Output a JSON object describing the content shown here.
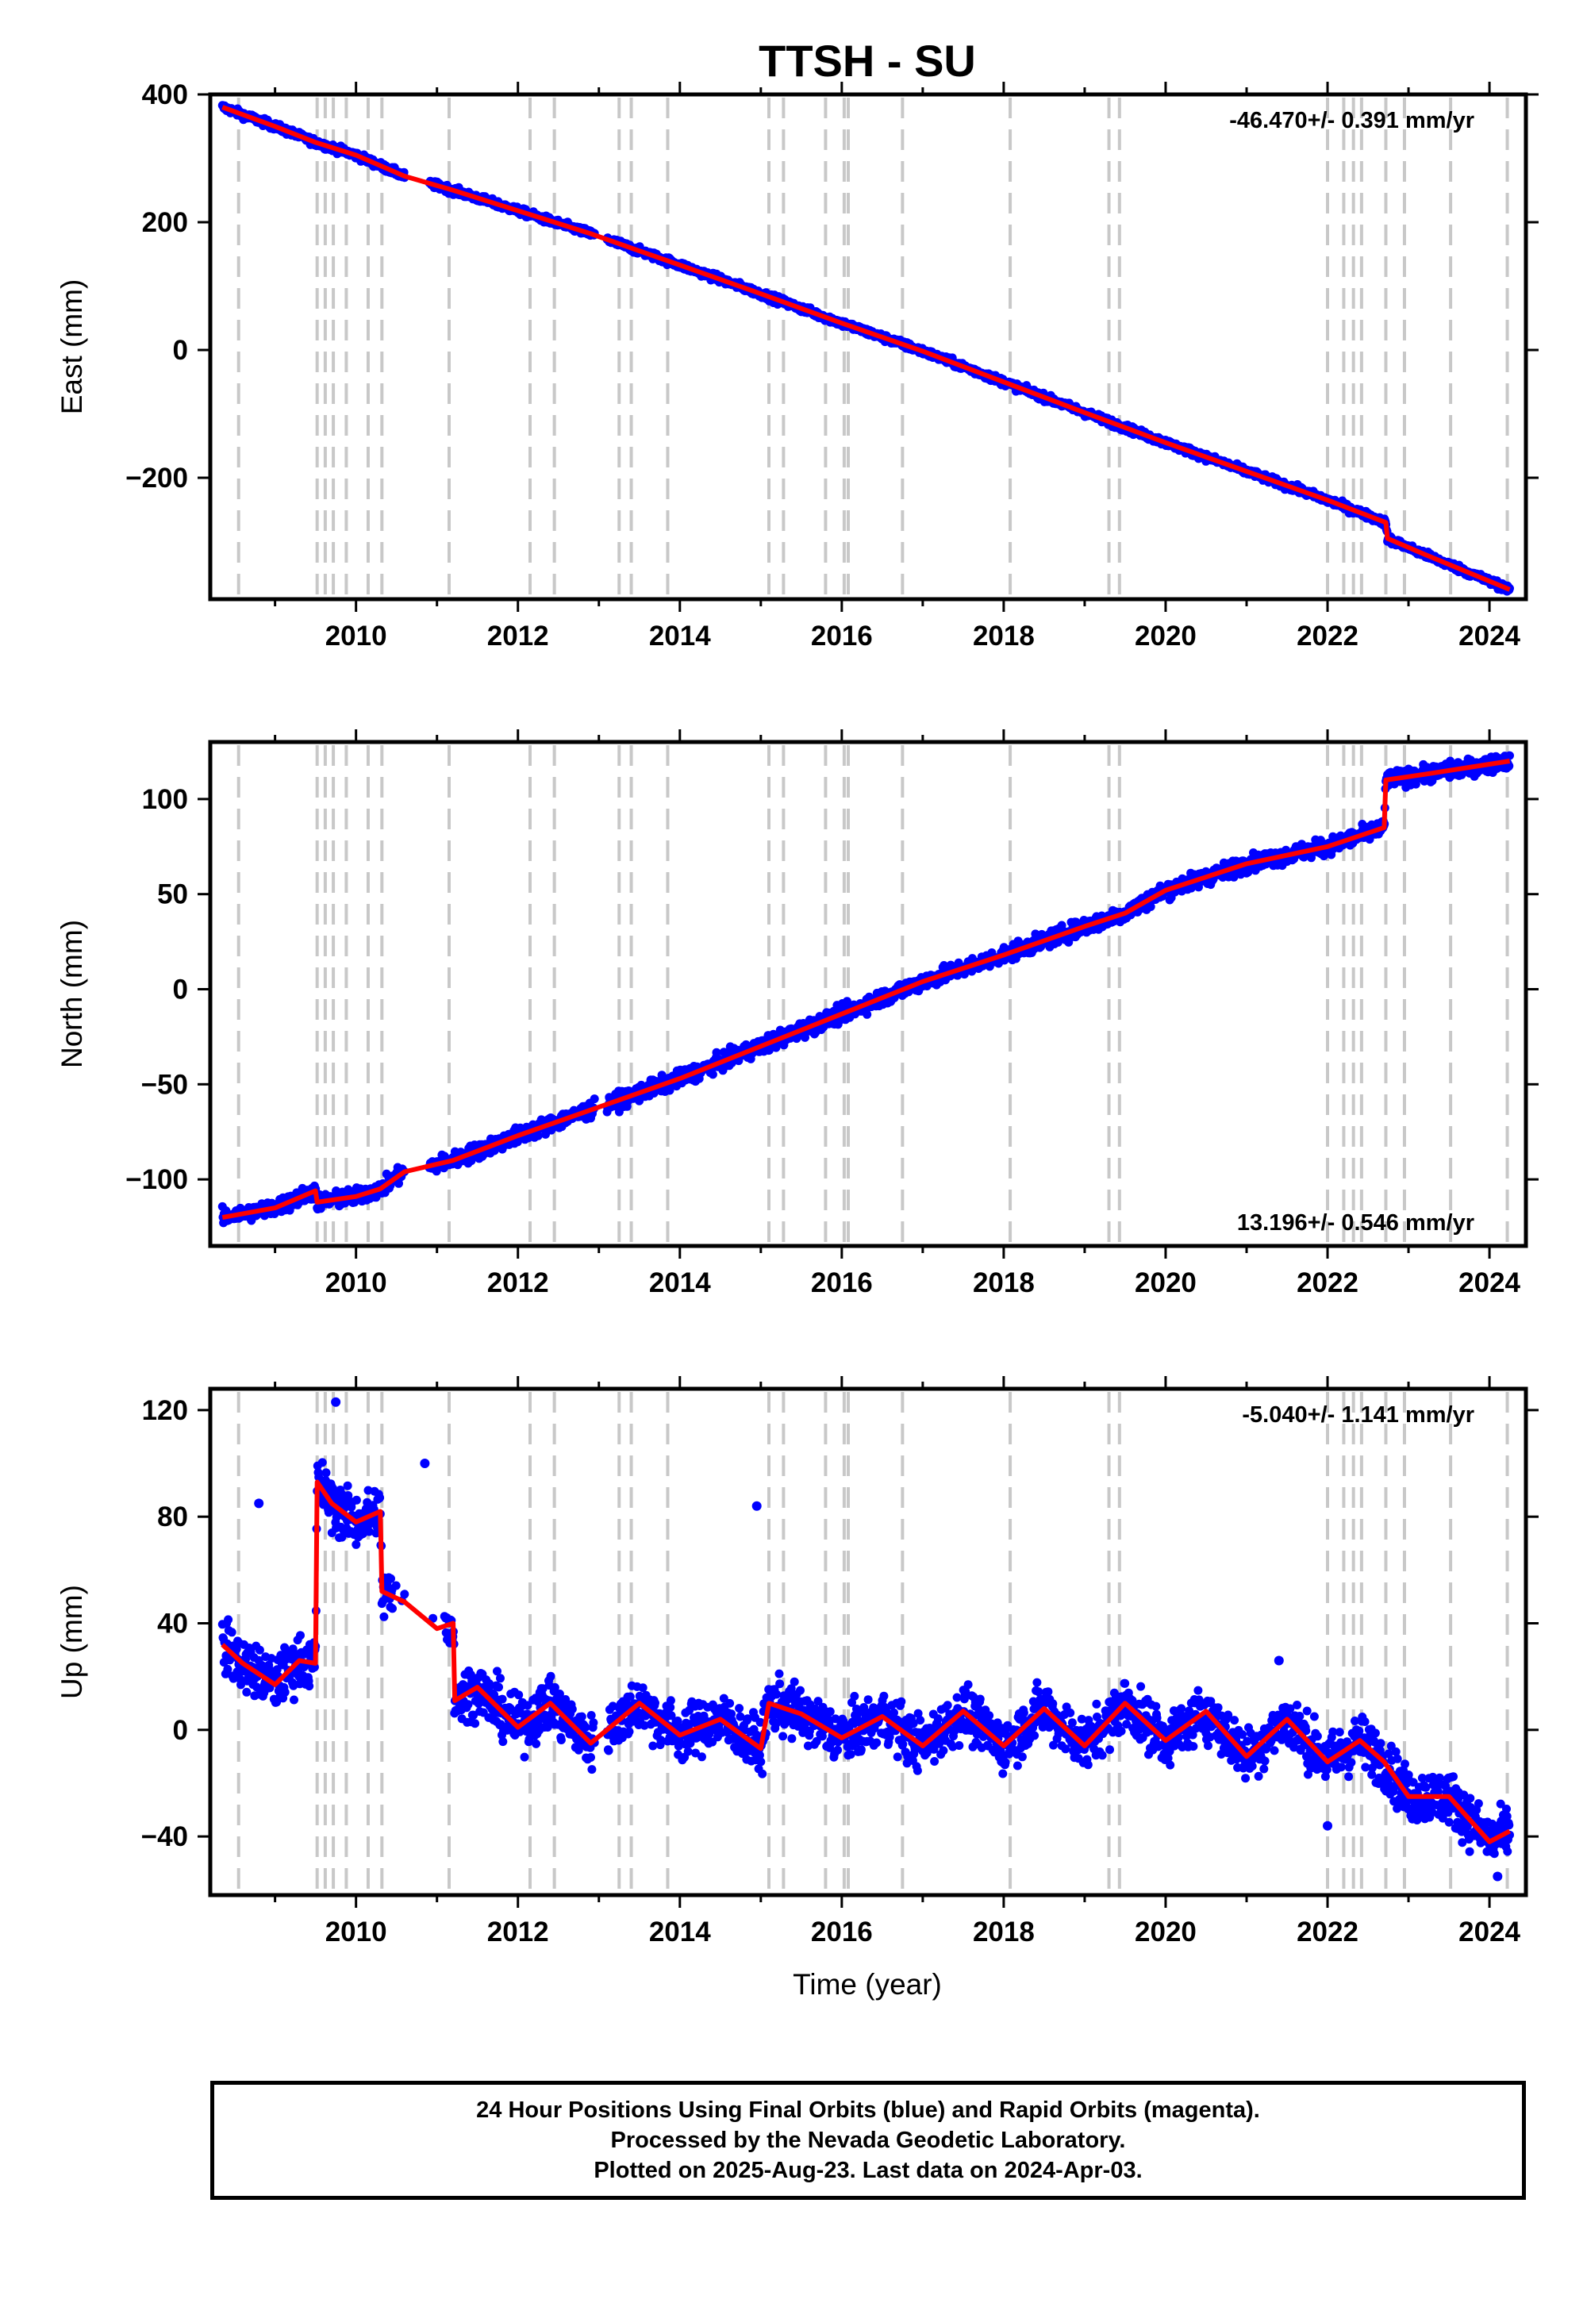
{
  "title": "TTSH - SU",
  "xlabel": "Time (year)",
  "footer": {
    "line1": "24 Hour Positions Using Final Orbits (blue) and Rapid Orbits (magenta).",
    "line2": "Processed by the Nevada Geodetic Laboratory.",
    "line3": "Plotted on 2025-Aug-23. Last data on 2024-Apr-03."
  },
  "colors": {
    "data": "#0000ff",
    "model": "#ff0000",
    "breaks": "#c8c8c8",
    "axes": "#000000"
  },
  "chart_data": [
    {
      "type": "scatter",
      "component": "east",
      "ylabel": "East (mm)",
      "rate": "-46.470+/- 0.391 mm/yr",
      "rate_position": "top-right",
      "xlim": [
        2008.2,
        2024.45
      ],
      "ylim": [
        -390,
        400
      ],
      "xticks": [
        2010,
        2012,
        2014,
        2016,
        2018,
        2020,
        2022,
        2024
      ],
      "yticks": [
        -200,
        0,
        200,
        400
      ],
      "model_x": [
        2008.35,
        2009.0,
        2009.5,
        2010.0,
        2010.6,
        2011.2,
        2012.0,
        2012.9,
        2013.5,
        2014.0,
        2015.0,
        2016.0,
        2017.0,
        2018.0,
        2019.0,
        2020.0,
        2021.0,
        2022.0,
        2022.72,
        2022.74,
        2023.2,
        2024.25
      ],
      "model_y": [
        380,
        350,
        325,
        305,
        272,
        250,
        218,
        182,
        155,
        133,
        88,
        42,
        -2,
        -50,
        -98,
        -145,
        -190,
        -235,
        -270,
        -295,
        -320,
        -375
      ]
    },
    {
      "type": "scatter",
      "component": "north",
      "ylabel": "North (mm)",
      "rate": "13.196+/- 0.546 mm/yr",
      "rate_position": "bottom-right",
      "xlim": [
        2008.2,
        2024.45
      ],
      "ylim": [
        -135,
        130
      ],
      "xticks": [
        2010,
        2012,
        2014,
        2016,
        2018,
        2020,
        2022,
        2024
      ],
      "yticks": [
        -100,
        -50,
        0,
        50,
        100
      ],
      "model_x": [
        2008.35,
        2009.0,
        2009.5,
        2009.52,
        2010.0,
        2010.3,
        2010.6,
        2011.2,
        2012.0,
        2013.0,
        2014.0,
        2015.0,
        2016.0,
        2017.0,
        2018.0,
        2019.0,
        2019.5,
        2020.0,
        2021.0,
        2022.0,
        2022.7,
        2022.72,
        2023.2,
        2024.25
      ],
      "model_y": [
        -120,
        -115,
        -106,
        -112,
        -109,
        -105,
        -96,
        -90,
        -77,
        -62,
        -47,
        -30,
        -13,
        4,
        18,
        33,
        40,
        52,
        66,
        75,
        85,
        110,
        113,
        120
      ]
    },
    {
      "type": "scatter",
      "component": "up",
      "ylabel": "Up (mm)",
      "rate": "-5.040+/- 1.141 mm/yr",
      "rate_position": "top-right",
      "xlim": [
        2008.2,
        2024.45
      ],
      "ylim": [
        -62,
        128
      ],
      "xticks": [
        2010,
        2012,
        2014,
        2016,
        2018,
        2020,
        2022,
        2024
      ],
      "yticks": [
        -40,
        0,
        40,
        80,
        120
      ],
      "model_x": [
        2008.35,
        2008.6,
        2009.0,
        2009.3,
        2009.5,
        2009.52,
        2009.7,
        2010.0,
        2010.3,
        2010.32,
        2010.6,
        2011.0,
        2011.2,
        2011.22,
        2011.5,
        2012.0,
        2012.4,
        2012.9,
        2013.5,
        2014.0,
        2014.5,
        2015.0,
        2015.1,
        2015.5,
        2016.0,
        2016.5,
        2017.0,
        2017.5,
        2018.0,
        2018.5,
        2019.0,
        2019.5,
        2020.0,
        2020.5,
        2021.0,
        2021.5,
        2022.0,
        2022.4,
        2022.7,
        2023.0,
        2023.5,
        2024.0,
        2024.25
      ],
      "model_y": [
        32,
        25,
        17,
        26,
        25,
        93,
        85,
        78,
        82,
        52,
        48,
        38,
        40,
        11,
        16,
        1,
        10,
        -5,
        10,
        -2,
        4,
        -7,
        10,
        6,
        -3,
        5,
        -6,
        7,
        -6,
        8,
        -6,
        10,
        -4,
        7,
        -10,
        4,
        -12,
        -4,
        -12,
        -25,
        -25,
        -42,
        -38
      ],
      "outliers": [
        [
          2008.8,
          85
        ],
        [
          2009.75,
          123
        ],
        [
          2010.85,
          100
        ],
        [
          2014.95,
          84
        ],
        [
          2021.4,
          26
        ],
        [
          2022.0,
          -36
        ],
        [
          2024.1,
          -55
        ]
      ]
    }
  ]
}
